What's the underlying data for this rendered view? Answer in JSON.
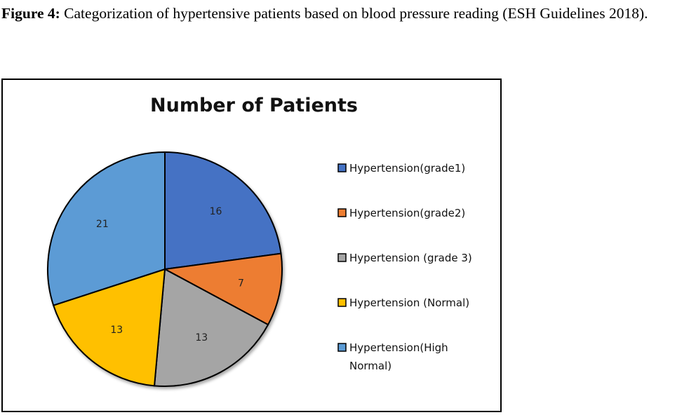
{
  "caption": {
    "label": "Figure 4:",
    "text": " Categorization of hypertensive patients based on blood pressure reading (ESH Guidelines 2018)."
  },
  "chart_data": {
    "type": "pie",
    "title": "Number of Patients",
    "legend_position": "right",
    "categories": [
      "Hypertension(grade1)",
      "Hypertension(grade2)",
      "Hypertension (grade 3)",
      "Hypertension (Normal)",
      "Hypertension(High Normal)"
    ],
    "values": [
      16,
      7,
      13,
      13,
      21
    ],
    "colors": [
      "#4472C4",
      "#ED7D31",
      "#A5A5A5",
      "#FFC000",
      "#5B9BD5"
    ],
    "legend_lines": [
      [
        "Hypertension(grade1)"
      ],
      [
        "Hypertension(grade2)"
      ],
      [
        "Hypertension (grade 3)"
      ],
      [
        "Hypertension (Normal)"
      ],
      [
        "Hypertension(High",
        "Normal)"
      ]
    ]
  }
}
